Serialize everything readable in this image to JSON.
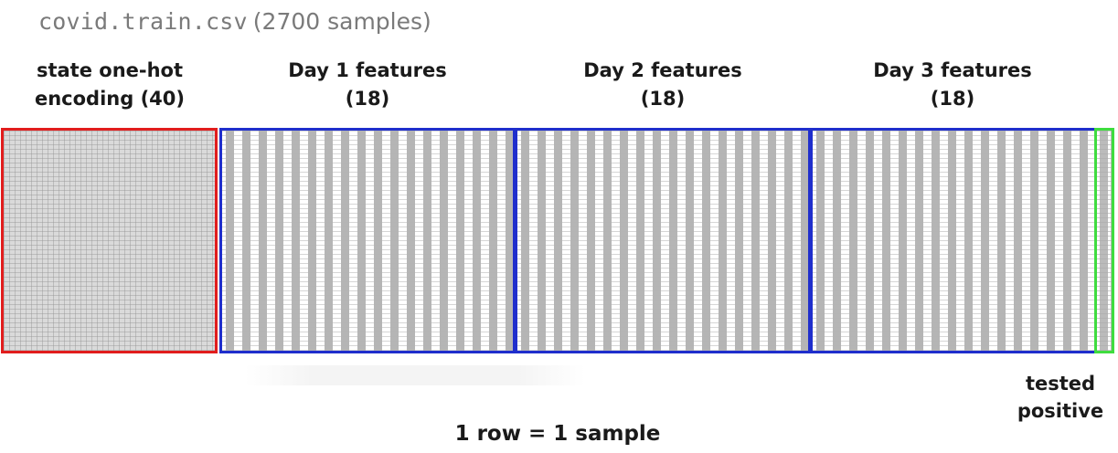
{
  "title": {
    "filename": "covid.train.csv",
    "samples": "(2700 samples)"
  },
  "headers": [
    {
      "line1": "state one-hot",
      "line2": "encoding (40)"
    },
    {
      "line1": "Day 1 features",
      "line2": "(18)"
    },
    {
      "line1": "Day 2 features",
      "line2": "(18)"
    },
    {
      "line1": "Day 3 features",
      "line2": "(18)"
    }
  ],
  "target_label": {
    "line1": "tested",
    "line2": "positive"
  },
  "footer": "1 row = 1 sample",
  "colors": {
    "state_block": "#e11d1d",
    "day_block": "#1f2ecc",
    "target_block": "#3fdc3f"
  }
}
